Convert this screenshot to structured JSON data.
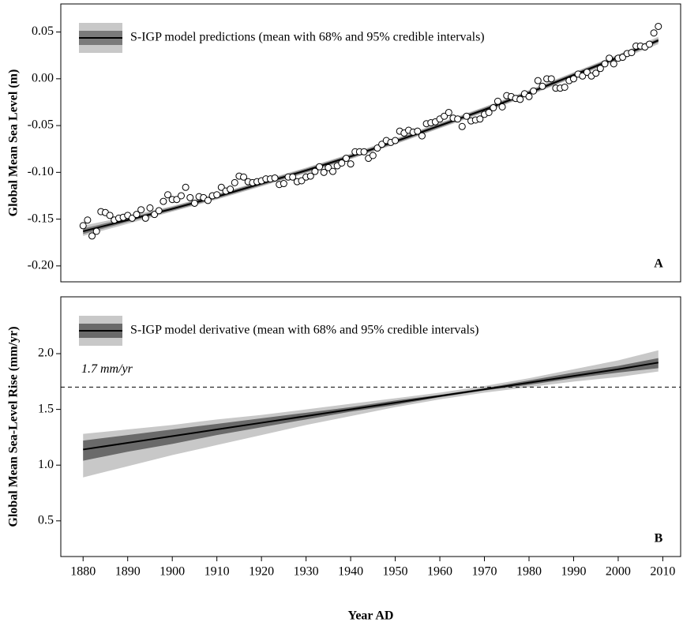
{
  "chart_data": [
    {
      "type": "line",
      "ylabel": "Global Mean Sea Level (m)",
      "panel_label": "A",
      "legend": "upper left",
      "xlim": [
        1875,
        2014
      ],
      "ylim": [
        -0.217,
        0.08
      ],
      "yticks": [
        {
          "value": -0.2,
          "label": "-0.20"
        },
        {
          "value": -0.15,
          "label": "-0.15"
        },
        {
          "value": -0.1,
          "label": "-0.10"
        },
        {
          "value": -0.05,
          "label": "-0.05"
        },
        {
          "value": 0,
          "label": "0.00"
        },
        {
          "value": 0.05,
          "label": "0.05"
        }
      ],
      "x": [
        1880,
        1890,
        1900,
        1910,
        1920,
        1930,
        1940,
        1950,
        1960,
        1970,
        1980,
        1990,
        2000,
        2009
      ],
      "series": [
        {
          "name": "S-IGP model predictions (mean with 68% and 95% credible intervals)",
          "color": "#000000",
          "band68_color": "#7a7a7a",
          "band95_color": "#c8c8c8",
          "values": [
            -0.163,
            -0.151,
            -0.139,
            -0.126,
            -0.112,
            -0.098,
            -0.083,
            -0.067,
            -0.05,
            -0.033,
            -0.015,
            0.004,
            0.023,
            0.041
          ],
          "lower95": [
            -0.168,
            -0.155,
            -0.142,
            -0.129,
            -0.115,
            -0.101,
            -0.086,
            -0.07,
            -0.053,
            -0.036,
            -0.018,
            0.001,
            0.02,
            0.037
          ],
          "upper95": [
            -0.157,
            -0.147,
            -0.136,
            -0.123,
            -0.109,
            -0.095,
            -0.08,
            -0.064,
            -0.047,
            -0.03,
            -0.012,
            0.007,
            0.026,
            0.045
          ],
          "lower68": [
            -0.166,
            -0.153,
            -0.141,
            -0.128,
            -0.114,
            -0.1,
            -0.085,
            -0.069,
            -0.052,
            -0.035,
            -0.017,
            0.002,
            0.021,
            0.039
          ],
          "upper68": [
            -0.16,
            -0.149,
            -0.137,
            -0.124,
            -0.11,
            -0.096,
            -0.081,
            -0.065,
            -0.048,
            -0.031,
            -0.013,
            0.006,
            0.025,
            0.043
          ]
        }
      ],
      "observations": {
        "x": [
          1880,
          1881,
          1882,
          1883,
          1884,
          1885,
          1886,
          1887,
          1888,
          1889,
          1890,
          1891,
          1892,
          1893,
          1894,
          1895,
          1896,
          1897,
          1898,
          1899,
          1900,
          1901,
          1902,
          1903,
          1904,
          1905,
          1906,
          1907,
          1908,
          1909,
          1910,
          1911,
          1912,
          1913,
          1914,
          1915,
          1916,
          1917,
          1918,
          1919,
          1920,
          1921,
          1922,
          1923,
          1924,
          1925,
          1926,
          1927,
          1928,
          1929,
          1930,
          1931,
          1932,
          1933,
          1934,
          1935,
          1936,
          1937,
          1938,
          1939,
          1940,
          1941,
          1942,
          1943,
          1944,
          1945,
          1946,
          1947,
          1948,
          1949,
          1950,
          1951,
          1952,
          1953,
          1954,
          1955,
          1956,
          1957,
          1958,
          1959,
          1960,
          1961,
          1962,
          1963,
          1964,
          1965,
          1966,
          1967,
          1968,
          1969,
          1970,
          1971,
          1972,
          1973,
          1974,
          1975,
          1976,
          1977,
          1978,
          1979,
          1980,
          1981,
          1982,
          1983,
          1984,
          1985,
          1986,
          1987,
          1988,
          1989,
          1990,
          1991,
          1992,
          1993,
          1994,
          1995,
          1996,
          1997,
          1998,
          1999,
          2000,
          2001,
          2002,
          2003,
          2004,
          2005,
          2006,
          2007,
          2008,
          2009
        ],
        "values": [
          -0.157,
          -0.151,
          -0.168,
          -0.163,
          -0.142,
          -0.143,
          -0.146,
          -0.151,
          -0.149,
          -0.148,
          -0.146,
          -0.149,
          -0.145,
          -0.14,
          -0.149,
          -0.138,
          -0.145,
          -0.141,
          -0.131,
          -0.124,
          -0.129,
          -0.129,
          -0.125,
          -0.116,
          -0.127,
          -0.133,
          -0.126,
          -0.127,
          -0.13,
          -0.125,
          -0.124,
          -0.116,
          -0.12,
          -0.118,
          -0.111,
          -0.104,
          -0.105,
          -0.11,
          -0.111,
          -0.11,
          -0.109,
          -0.107,
          -0.107,
          -0.106,
          -0.113,
          -0.112,
          -0.105,
          -0.105,
          -0.11,
          -0.109,
          -0.105,
          -0.104,
          -0.099,
          -0.094,
          -0.1,
          -0.095,
          -0.099,
          -0.093,
          -0.09,
          -0.085,
          -0.091,
          -0.078,
          -0.078,
          -0.078,
          -0.085,
          -0.082,
          -0.074,
          -0.07,
          -0.066,
          -0.068,
          -0.066,
          -0.056,
          -0.058,
          -0.055,
          -0.057,
          -0.056,
          -0.061,
          -0.048,
          -0.047,
          -0.046,
          -0.043,
          -0.04,
          -0.036,
          -0.042,
          -0.043,
          -0.051,
          -0.04,
          -0.045,
          -0.044,
          -0.043,
          -0.038,
          -0.036,
          -0.031,
          -0.024,
          -0.03,
          -0.018,
          -0.019,
          -0.021,
          -0.022,
          -0.016,
          -0.019,
          -0.013,
          -0.002,
          -0.008,
          0,
          0,
          -0.01,
          -0.01,
          -0.009,
          -0.002,
          0,
          0.005,
          0.003,
          0.007,
          0.003,
          0.006,
          0.011,
          0.016,
          0.022,
          0.016,
          0.022,
          0.023,
          0.027,
          0.028,
          0.035,
          0.035,
          0.034,
          0.037,
          0.049,
          0.056
        ]
      }
    },
    {
      "type": "line",
      "ylabel": "Global Mean Sea-Level Rise (mm/yr)",
      "xlabel": "Year AD",
      "panel_label": "B",
      "legend": "upper left",
      "xlim": [
        1875,
        2014
      ],
      "ylim": [
        0.18,
        2.51
      ],
      "xticks": [
        1880,
        1890,
        1900,
        1910,
        1920,
        1930,
        1940,
        1950,
        1960,
        1970,
        1980,
        1990,
        2000,
        2010
      ],
      "yticks": [
        0.5,
        {
          "value": 1,
          "label": "1.0"
        },
        1.5,
        {
          "value": 2,
          "label": "2.0"
        }
      ],
      "hline": {
        "value": 1.7,
        "label": "1.7 mm/yr"
      },
      "x": [
        1880,
        1890,
        1900,
        1910,
        1920,
        1930,
        1940,
        1950,
        1960,
        1970,
        1980,
        1990,
        2000,
        2009
      ],
      "series": [
        {
          "name": "S-IGP model derivative (mean with 68% and 95% credible intervals)",
          "color": "#000000",
          "band68_color": "#6a6a6a",
          "band95_color": "#c8c8c8",
          "values": [
            1.14,
            1.2,
            1.26,
            1.32,
            1.38,
            1.44,
            1.5,
            1.56,
            1.62,
            1.68,
            1.74,
            1.8,
            1.86,
            1.92
          ],
          "lower95": [
            0.89,
            0.99,
            1.09,
            1.18,
            1.27,
            1.36,
            1.44,
            1.52,
            1.59,
            1.65,
            1.7,
            1.75,
            1.79,
            1.84
          ],
          "upper95": [
            1.28,
            1.32,
            1.36,
            1.41,
            1.45,
            1.5,
            1.55,
            1.6,
            1.65,
            1.71,
            1.78,
            1.86,
            1.94,
            2.03
          ],
          "lower68": [
            1.04,
            1.12,
            1.19,
            1.27,
            1.34,
            1.41,
            1.48,
            1.54,
            1.61,
            1.67,
            1.72,
            1.78,
            1.83,
            1.87
          ],
          "upper68": [
            1.22,
            1.27,
            1.32,
            1.37,
            1.42,
            1.47,
            1.52,
            1.58,
            1.63,
            1.69,
            1.76,
            1.83,
            1.89,
            1.96
          ]
        }
      ]
    }
  ]
}
